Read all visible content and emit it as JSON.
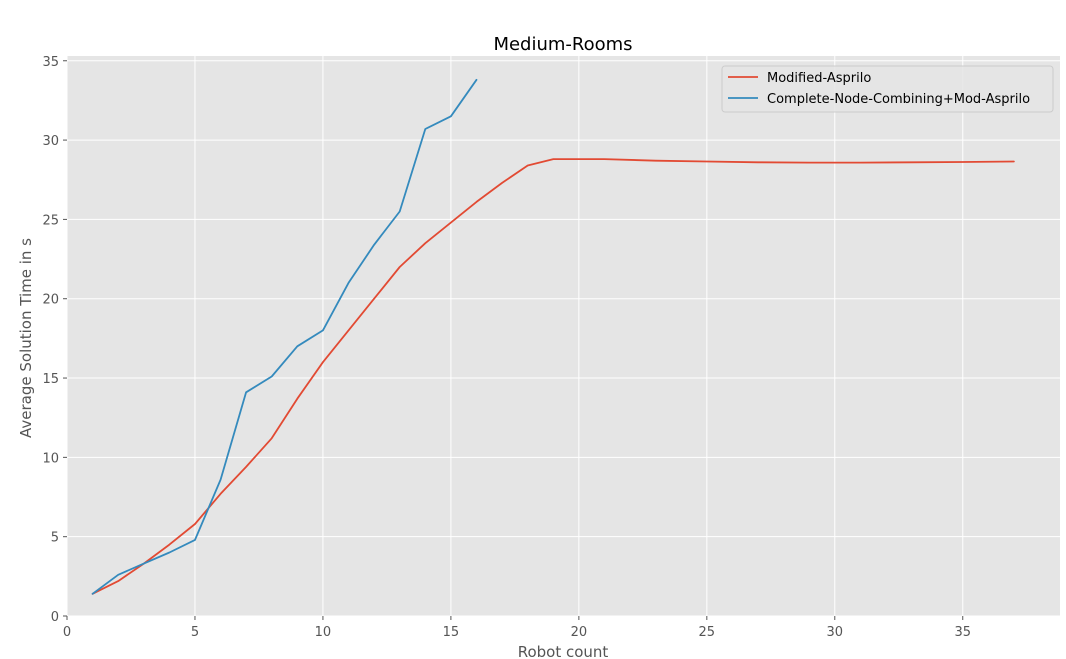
{
  "chart_data": {
    "type": "line",
    "title": "Medium-Rooms",
    "xlabel": "Robot count",
    "ylabel": "Average Solution Time in s",
    "xlim": [
      0,
      38.8
    ],
    "ylim": [
      0,
      35.3
    ],
    "xticks": [
      0,
      5,
      10,
      15,
      20,
      25,
      30,
      35
    ],
    "yticks": [
      0,
      5,
      10,
      15,
      20,
      25,
      30,
      35
    ],
    "grid": true,
    "legend_position": "top-right",
    "series": [
      {
        "name": "Modified-Asprilo",
        "color": "#e24a33",
        "x": [
          1,
          2,
          3,
          4,
          5,
          6,
          7,
          8,
          9,
          10,
          11,
          12,
          13,
          14,
          15,
          16,
          17,
          18,
          19,
          20,
          21,
          23,
          25,
          27,
          29,
          31,
          33,
          35,
          37
        ],
        "y": [
          1.4,
          2.2,
          3.3,
          4.5,
          5.8,
          7.7,
          9.4,
          11.2,
          13.7,
          16.0,
          18.0,
          20.0,
          22.0,
          23.5,
          24.8,
          26.1,
          27.3,
          28.4,
          28.8,
          28.8,
          28.8,
          28.7,
          28.65,
          28.6,
          28.58,
          28.58,
          28.6,
          28.62,
          28.65
        ]
      },
      {
        "name": "Complete-Node-Combining+Mod-Asprilo",
        "color": "#348abd",
        "x": [
          1,
          2,
          3,
          4,
          5,
          6,
          7,
          8,
          9,
          10,
          11,
          12,
          13,
          14,
          15,
          16
        ],
        "y": [
          1.4,
          2.6,
          3.3,
          4.0,
          4.8,
          8.6,
          14.1,
          15.1,
          17.0,
          18.0,
          21.0,
          23.4,
          25.5,
          30.7,
          31.5,
          33.8
        ]
      }
    ]
  }
}
